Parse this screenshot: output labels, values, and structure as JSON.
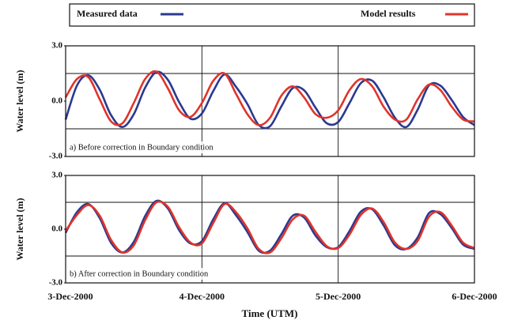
{
  "chart_data": [
    {
      "type": "line",
      "ylabel": "Water level (m)",
      "annotation": "a) Before correction in Boundary condition",
      "xlim": [
        0,
        72
      ],
      "xticks": [
        0,
        24,
        48,
        72
      ],
      "ylim": [
        -3,
        3
      ],
      "yticks": [
        {
          "value": 3,
          "label": "3.0"
        },
        {
          "value": 0,
          "label": "0.0"
        },
        {
          "value": -3,
          "label": "-3.0"
        }
      ],
      "ygrid": [
        1.5,
        -1.5
      ],
      "x": [
        0,
        2,
        4,
        6,
        8,
        10,
        12,
        14,
        16,
        18,
        20,
        22,
        24,
        26,
        28,
        30,
        32,
        34,
        36,
        38,
        40,
        42,
        44,
        46,
        48,
        50,
        52,
        54,
        56,
        58,
        60,
        62,
        64,
        66,
        68,
        70,
        72
      ],
      "series": [
        {
          "name": "Measured data",
          "color": "#2b3990",
          "values": [
            -1.0,
            0.85,
            1.4,
            0.62,
            -0.76,
            -1.4,
            -0.71,
            0.73,
            1.58,
            1.16,
            -0.06,
            -0.95,
            -0.67,
            0.55,
            1.45,
            0.78,
            -0.15,
            -1.29,
            -1.36,
            -0.28,
            0.71,
            0.59,
            -0.35,
            -1.2,
            -1.13,
            -0.1,
            0.98,
            1.11,
            0.21,
            -0.9,
            -1.4,
            -0.46,
            0.86,
            0.84,
            0.06,
            -0.86,
            -1.3
          ]
        },
        {
          "name": "Model results",
          "color": "#e0342a",
          "values": [
            0.2,
            1.2,
            1.3,
            0.1,
            -1.1,
            -1.2,
            -0.1,
            1.2,
            1.6,
            0.7,
            -0.5,
            -0.85,
            -0.1,
            1.1,
            1.5,
            0.4,
            -0.7,
            -1.3,
            -0.9,
            0.3,
            0.8,
            0.2,
            -0.7,
            -0.9,
            -0.5,
            0.6,
            1.2,
            0.8,
            -0.3,
            -1.0,
            -1.0,
            0.1,
            0.9,
            0.6,
            -0.3,
            -1.0,
            -1.1
          ]
        }
      ]
    },
    {
      "type": "line",
      "annotation": "b) After correction in Boundary condition",
      "xlabel": "Time (UTM)",
      "xlim": [
        0,
        72
      ],
      "xticks": [
        {
          "value": 0,
          "label": "3-Dec-2000"
        },
        {
          "value": 24,
          "label": "4-Dec-2000"
        },
        {
          "value": 48,
          "label": "5-Dec-2000"
        },
        {
          "value": 72,
          "label": "6-Dec-2000"
        }
      ],
      "ylim": [
        -3,
        3
      ],
      "yticks": [
        {
          "value": 3,
          "label": "3.0"
        },
        {
          "value": 0,
          "label": "0.0"
        },
        {
          "value": -3,
          "label": "-3.0"
        }
      ],
      "ygrid": [
        1.5,
        -1.5
      ],
      "x": [
        0,
        2,
        4,
        6,
        8,
        10,
        12,
        14,
        16,
        18,
        20,
        22,
        24,
        26,
        28,
        30,
        32,
        34,
        36,
        38,
        40,
        42,
        44,
        46,
        48,
        50,
        52,
        54,
        56,
        58,
        60,
        62,
        64,
        66,
        68,
        70,
        72
      ],
      "series": [
        {
          "color": "#2b3990",
          "values": [
            -0.2,
            0.95,
            1.4,
            0.62,
            -0.76,
            -1.3,
            -0.71,
            0.73,
            1.58,
            1.16,
            -0.06,
            -0.8,
            -0.67,
            0.55,
            1.45,
            0.78,
            -0.15,
            -1.2,
            -1.2,
            -0.28,
            0.75,
            0.65,
            -0.35,
            -1.0,
            -1.0,
            -0.1,
            0.98,
            1.11,
            0.21,
            -0.9,
            -1.1,
            -0.46,
            0.9,
            0.84,
            0.06,
            -0.86,
            -1.1
          ]
        },
        {
          "color": "#e0342a",
          "values": [
            -0.1,
            0.8,
            1.35,
            0.75,
            -0.6,
            -1.3,
            -0.9,
            0.5,
            1.5,
            1.25,
            0.1,
            -0.75,
            -0.8,
            0.35,
            1.4,
            0.95,
            0.05,
            -1.1,
            -1.3,
            -0.5,
            0.55,
            0.75,
            -0.15,
            -0.95,
            -1.05,
            -0.3,
            0.8,
            1.15,
            0.4,
            -0.75,
            -1.1,
            -0.65,
            0.7,
            0.95,
            0.2,
            -0.75,
            -1.05
          ]
        }
      ]
    }
  ]
}
